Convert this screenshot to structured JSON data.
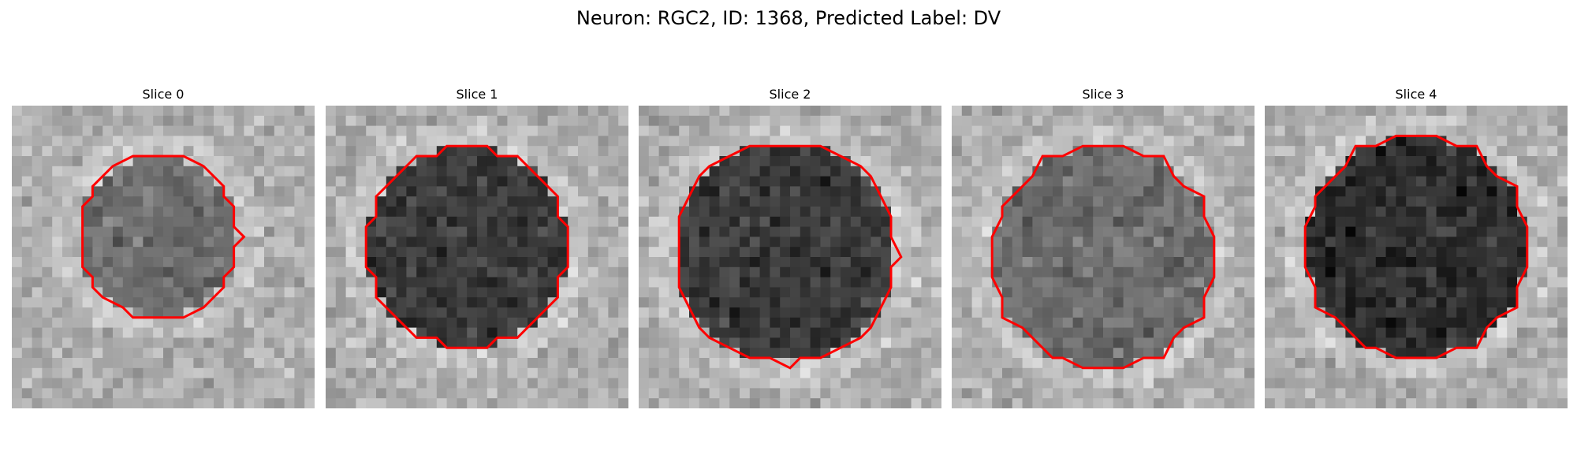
{
  "figure": {
    "title": "Neuron: RGC2, ID: 1368, Predicted Label: DV"
  },
  "colors": {
    "contour": "#ff0000",
    "background": "#ffffff"
  },
  "panels": [
    {
      "title": "Slice 0",
      "cell": {
        "cx": 14.5,
        "cy": 13,
        "r": 8,
        "darkness": 0.25
      }
    },
    {
      "title": "Slice 1",
      "cell": {
        "cx": 14,
        "cy": 14,
        "r": 10,
        "darkness": 0.45
      }
    },
    {
      "title": "Slice 2",
      "cell": {
        "cx": 14.5,
        "cy": 14.5,
        "r": 11,
        "darkness": 0.45
      }
    },
    {
      "title": "Slice 3",
      "cell": {
        "cx": 15,
        "cy": 15,
        "r": 11,
        "darkness": 0.25
      }
    },
    {
      "title": "Slice 4",
      "cell": {
        "cx": 15,
        "cy": 14,
        "r": 11,
        "darkness": 0.5
      }
    }
  ]
}
